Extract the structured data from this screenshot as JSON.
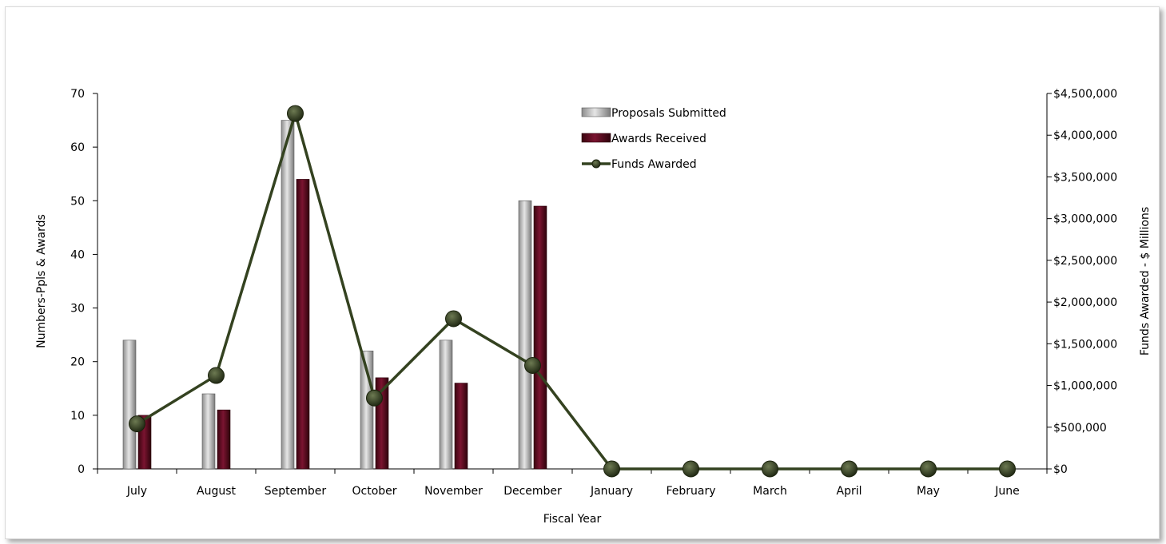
{
  "chart_data": {
    "type": "bar",
    "xlabel": "Fiscal Year",
    "ylabel_left": "Numbers-Ppls & Awards",
    "ylabel_right": "Funds Awarded - $ Millions",
    "categories": [
      "July",
      "August",
      "September",
      "October",
      "November",
      "December",
      "January",
      "February",
      "March",
      "April",
      "May",
      "June"
    ],
    "ylim_left": [
      0,
      70
    ],
    "yticks_left": [
      "0",
      "10",
      "20",
      "30",
      "40",
      "50",
      "60",
      "70"
    ],
    "ylim_right": [
      0,
      4500000
    ],
    "yticks_right": [
      "$0",
      "$500,000",
      "$1,000,000",
      "$1,500,000",
      "$2,000,000",
      "$2,500,000",
      "$3,000,000",
      "$3,500,000",
      "$4,000,000",
      "$4,500,000"
    ],
    "grid": false,
    "legend_position": "top-center",
    "series": [
      {
        "name": "Proposals Submitted",
        "type": "bar",
        "axis": "left",
        "color": "#b3b3b3",
        "values": [
          24,
          14,
          65,
          22,
          24,
          50,
          0,
          0,
          0,
          0,
          0,
          0
        ]
      },
      {
        "name": "Awards Received",
        "type": "bar",
        "axis": "left",
        "color": "#5c0a1e",
        "values": [
          10,
          11,
          54,
          17,
          16,
          49,
          0,
          0,
          0,
          0,
          0,
          0
        ]
      },
      {
        "name": "Funds Awarded",
        "type": "line",
        "axis": "right",
        "color": "#344220",
        "values": [
          540000,
          1120000,
          4260000,
          850000,
          1800000,
          1240000,
          0,
          0,
          0,
          0,
          0,
          0
        ]
      }
    ]
  }
}
